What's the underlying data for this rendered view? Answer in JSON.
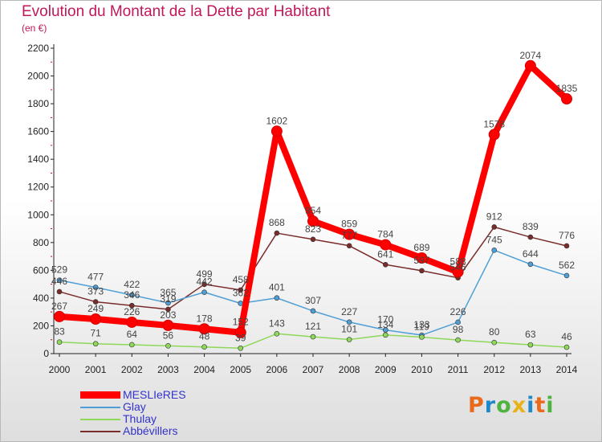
{
  "chart_data": {
    "type": "line",
    "title": "Evolution du Montant de la Dette par Habitant",
    "subtitle": "(en €)",
    "x": [
      "2000",
      "2001",
      "2002",
      "2003",
      "2004",
      "2005",
      "2006",
      "2007",
      "2008",
      "2009",
      "2010",
      "2011",
      "2012",
      "2013",
      "2014"
    ],
    "ylim": [
      0,
      2200
    ],
    "yticks": [
      0,
      200,
      400,
      600,
      800,
      1000,
      1200,
      1400,
      1600,
      1800,
      2000,
      2200
    ],
    "grid": false,
    "legend_position": "bottom-left",
    "series": [
      {
        "name": "MESLIeRES",
        "color": "#ff0000",
        "values": [
          267,
          249,
          226,
          203,
          178,
          152,
          1602,
          954,
          859,
          784,
          689,
          588,
          1578,
          2074,
          1835
        ]
      },
      {
        "name": "Glay",
        "color": "#4f9fd6",
        "values": [
          529,
          477,
          422,
          365,
          442,
          362,
          401,
          307,
          227,
          170,
          133,
          226,
          745,
          644,
          562
        ]
      },
      {
        "name": "Thulay",
        "color": "#8ed85a",
        "values": [
          83,
          71,
          64,
          56,
          48,
          39,
          143,
          121,
          101,
          134,
          119,
          98,
          80,
          63,
          46
        ]
      },
      {
        "name": "Abbévillers",
        "color": "#7a2b2b",
        "values": [
          446,
          373,
          346,
          319,
          499,
          458,
          868,
          823,
          777,
          641,
          597,
          546,
          912,
          839,
          776
        ]
      }
    ]
  },
  "brand": {
    "letters": [
      "P",
      "r",
      "o",
      "x",
      "i",
      "t",
      "i"
    ]
  }
}
